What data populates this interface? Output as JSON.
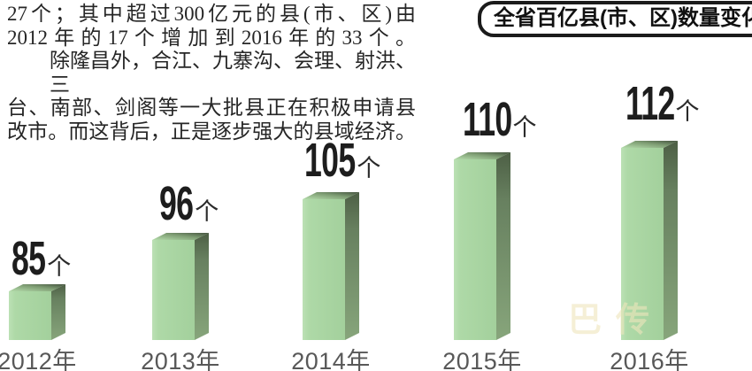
{
  "article": {
    "lines": [
      "27个；其中超过300亿元的县(市、区)由",
      "2012年的17个增加到2016年的33个。",
      "除隆昌外，合江、九寨沟、会理、射洪、三",
      "台、南部、剑阁等一大批县正在积极申请县",
      "改市。而这背后，正是逐步强大的县域经济。"
    ]
  },
  "banner": {
    "title": "全省百亿县(市、区)数量变化"
  },
  "chart_data": {
    "type": "bar",
    "title": "全省百亿县(市、区)数量变化",
    "categories": [
      "2012年",
      "2013年",
      "2014年",
      "2015年",
      "2016年"
    ],
    "values": [
      85,
      96,
      105,
      110,
      112
    ],
    "unit": "个",
    "value_labels": [
      "85个",
      "96个",
      "105个",
      "110个",
      "112个"
    ],
    "xlabel": "",
    "ylabel": "",
    "grid": false,
    "legend": "none",
    "style": "3d-oblique-bars",
    "colors": {
      "bar_front": "#aad6a3",
      "bar_side": "#6d8762",
      "bar_top": "#8fb486",
      "value_label": "#1d1d1d",
      "axis_label": "#585858"
    }
  },
  "watermark": {
    "text": "巴传"
  }
}
